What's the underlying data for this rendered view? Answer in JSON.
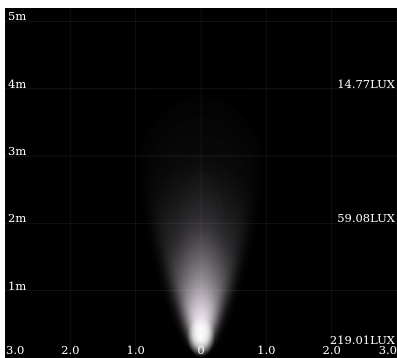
{
  "chart_data": {
    "type": "heatmap",
    "title": "",
    "xlabel": "",
    "ylabel": "",
    "x_ticks": [
      "3.0",
      "2.0",
      "1.0",
      "0",
      "1.0",
      "2.0",
      "3.0"
    ],
    "x_tick_values": [
      -3,
      -2,
      -1,
      0,
      1,
      2,
      3
    ],
    "xlim": [
      -3,
      3
    ],
    "y_ticks": [
      "5m",
      "4m",
      "3m",
      "2m",
      "1m"
    ],
    "y_tick_values": [
      5,
      4,
      3,
      2,
      1
    ],
    "ylim": [
      0,
      5.2
    ],
    "illuminance": [
      {
        "distance_m": 4,
        "label": "14.77LUX"
      },
      {
        "distance_m": 2,
        "label": "59.08LUX"
      },
      {
        "distance_m": 0.2,
        "label": "219.01LUX"
      }
    ],
    "colors": {
      "background": "#000000",
      "beam": "#ffffff",
      "beam_tint": "#f4e9ff",
      "text": "#ffffff",
      "grid": "#555555"
    },
    "grid": true
  }
}
